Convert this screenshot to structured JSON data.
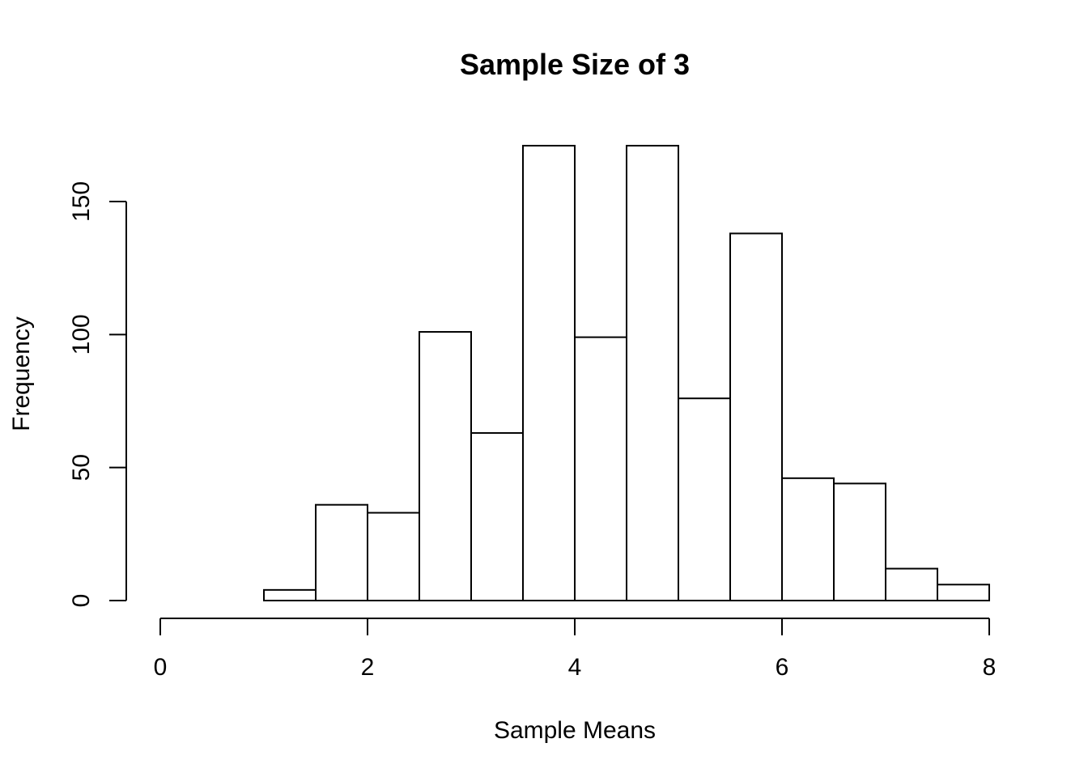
{
  "chart_data": {
    "type": "bar",
    "title": "Sample Size of 3",
    "xlabel": "Sample Means",
    "ylabel": "Frequency",
    "xlim": [
      0,
      8
    ],
    "ylim": [
      0,
      171
    ],
    "x_ticks": [
      0,
      2,
      4,
      6,
      8
    ],
    "y_ticks": [
      0,
      50,
      100,
      150
    ],
    "bins": [
      {
        "x0": 1.0,
        "x1": 1.5,
        "count": 4
      },
      {
        "x0": 1.5,
        "x1": 2.0,
        "count": 36
      },
      {
        "x0": 2.0,
        "x1": 2.5,
        "count": 33
      },
      {
        "x0": 2.5,
        "x1": 3.0,
        "count": 101
      },
      {
        "x0": 3.0,
        "x1": 3.5,
        "count": 63
      },
      {
        "x0": 3.5,
        "x1": 4.0,
        "count": 171
      },
      {
        "x0": 4.0,
        "x1": 4.5,
        "count": 99
      },
      {
        "x0": 4.5,
        "x1": 5.0,
        "count": 171
      },
      {
        "x0": 5.0,
        "x1": 5.5,
        "count": 76
      },
      {
        "x0": 5.5,
        "x1": 6.0,
        "count": 138
      },
      {
        "x0": 6.0,
        "x1": 6.5,
        "count": 46
      },
      {
        "x0": 6.5,
        "x1": 7.0,
        "count": 44
      },
      {
        "x0": 7.0,
        "x1": 7.5,
        "count": 12
      },
      {
        "x0": 7.5,
        "x1": 8.0,
        "count": 6
      }
    ],
    "grid": false,
    "legend": "none"
  }
}
